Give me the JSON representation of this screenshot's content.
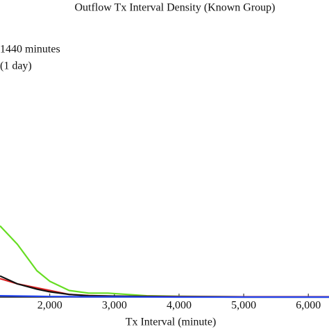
{
  "chart_data": {
    "type": "line",
    "title": "Outflow Tx Interval Density (Known Group)",
    "x_label": "Tx Interval (minute)",
    "annotation": [
      "1440 minutes",
      "(1 day)"
    ],
    "x": [
      1230,
      1500,
      1800,
      2000,
      2300,
      2600,
      2900,
      3200,
      3500,
      4000,
      5000,
      6320
    ],
    "series": [
      {
        "color": "#66dd22",
        "values": [
          27,
          20,
          10,
          6,
          2.5,
          1.5,
          1.5,
          1,
          0.5,
          0.3,
          0.1,
          0.1
        ]
      },
      {
        "color": "#dd2222",
        "values": [
          7,
          5,
          3.5,
          2.5,
          1,
          0.6,
          0.4,
          0.3,
          0.3,
          0.2,
          0.1,
          0.1
        ]
      },
      {
        "color": "#111111",
        "values": [
          8,
          5,
          3,
          2,
          1,
          0.5,
          0.4,
          0.3,
          0.2,
          0.1,
          0,
          0
        ]
      },
      {
        "color": "#2244ee",
        "values": [
          0.5,
          0.4,
          0.3,
          0.2,
          0.15,
          0.1,
          0.1,
          0.1,
          0.05,
          0,
          0,
          0
        ]
      }
    ],
    "xlim": [
      1230,
      6320
    ],
    "ylim": [
      0,
      100
    ],
    "xticks": [
      {
        "value": 2000,
        "label": "2,000"
      },
      {
        "value": 3000,
        "label": "3,000"
      },
      {
        "value": 4000,
        "label": "4,000"
      },
      {
        "value": 5000,
        "label": "5,000"
      },
      {
        "value": 6000,
        "label": "6,000"
      }
    ]
  }
}
